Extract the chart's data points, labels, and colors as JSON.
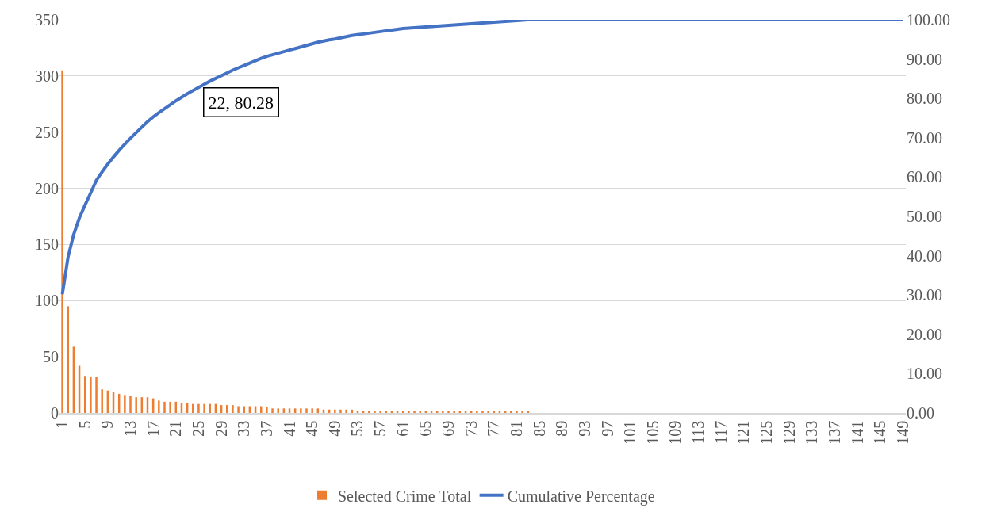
{
  "chart_data": {
    "type": "bar",
    "categories": [
      "1",
      null,
      null,
      null,
      "5",
      null,
      null,
      null,
      "9",
      null,
      null,
      null,
      "13",
      null,
      null,
      null,
      "17",
      null,
      null,
      null,
      "21",
      null,
      null,
      null,
      "25",
      null,
      null,
      null,
      "29",
      null,
      null,
      null,
      "33",
      null,
      null,
      null,
      "37",
      null,
      null,
      null,
      "41",
      null,
      null,
      null,
      "45",
      null,
      null,
      null,
      "49",
      null,
      null,
      null,
      "53",
      null,
      null,
      null,
      "57",
      null,
      null,
      null,
      "61",
      null,
      null,
      null,
      "65",
      null,
      null,
      null,
      "69",
      null,
      null,
      null,
      "73",
      null,
      null,
      null,
      "77",
      null,
      null,
      null,
      "81",
      null,
      null,
      null,
      "85",
      null,
      null,
      null,
      "89",
      null,
      null,
      null,
      "93",
      null,
      null,
      null,
      "97",
      null,
      null,
      null,
      "101",
      null,
      null,
      null,
      "105",
      null,
      null,
      null,
      "109",
      null,
      null,
      null,
      "113",
      null,
      null,
      null,
      "117",
      null,
      null,
      null,
      "121",
      null,
      null,
      null,
      "125",
      null,
      null,
      null,
      "129",
      null,
      null,
      null,
      "133",
      null,
      null,
      null,
      "137",
      null,
      null,
      null,
      "141",
      null,
      null,
      null,
      "145",
      null,
      null,
      null,
      "149"
    ],
    "series": [
      {
        "name": "Selected Crime Total",
        "color": "#ed7d31",
        "values": [
          305,
          95,
          59,
          42,
          33,
          32,
          32,
          21,
          20,
          19,
          17,
          16,
          15,
          14,
          14,
          14,
          13,
          11,
          10,
          10,
          10,
          9,
          9,
          8,
          8,
          8,
          8,
          8,
          7,
          7,
          7,
          6,
          6,
          6,
          6,
          6,
          5,
          4,
          4,
          4,
          4,
          4,
          4,
          4,
          4,
          4,
          3,
          3,
          3,
          3,
          3,
          3,
          2,
          2,
          2,
          2,
          2,
          2,
          2,
          2,
          2,
          1,
          1,
          1,
          1,
          1,
          1,
          1,
          1,
          1,
          1,
          1,
          1,
          1,
          1,
          1,
          1,
          1,
          1,
          1,
          1,
          1,
          1,
          0,
          0,
          0,
          0,
          0,
          0,
          0,
          0,
          0,
          0,
          0,
          0,
          0,
          0,
          0,
          0,
          0,
          0,
          0,
          0,
          0,
          0,
          0,
          0,
          0,
          0,
          0,
          0,
          0,
          0,
          0,
          0,
          0,
          0,
          0,
          0,
          0,
          0,
          0,
          0,
          0,
          0,
          0,
          0,
          0,
          0,
          0,
          0,
          0,
          0,
          0,
          0,
          0,
          0,
          0,
          0,
          0,
          0,
          0,
          0,
          0,
          0,
          0,
          0,
          0,
          0
        ]
      },
      {
        "name": "Cumulative Percentage",
        "type": "line",
        "axis": "y2",
        "color": "#4472c4",
        "values": [
          30.2,
          39.6,
          45.4,
          49.6,
          52.9,
          56.0,
          59.2,
          61.3,
          63.3,
          65.1,
          66.8,
          68.4,
          69.9,
          71.3,
          72.7,
          74.1,
          75.3,
          76.4,
          77.4,
          78.4,
          79.4,
          80.3,
          81.2,
          82.0,
          82.8,
          83.6,
          84.4,
          85.1,
          85.8,
          86.5,
          87.2,
          87.8,
          88.4,
          89.0,
          89.6,
          90.2,
          90.7,
          91.1,
          91.5,
          91.9,
          92.3,
          92.7,
          93.1,
          93.5,
          93.9,
          94.3,
          94.6,
          94.9,
          95.1,
          95.4,
          95.7,
          96.0,
          96.2,
          96.4,
          96.6,
          96.8,
          97.0,
          97.2,
          97.4,
          97.6,
          97.8,
          97.9,
          98.0,
          98.1,
          98.2,
          98.3,
          98.4,
          98.5,
          98.6,
          98.7,
          98.8,
          98.9,
          99.0,
          99.1,
          99.2,
          99.3,
          99.4,
          99.5,
          99.6,
          99.7,
          99.8,
          99.9,
          100,
          100,
          100,
          100,
          100,
          100,
          100,
          100,
          100,
          100,
          100,
          100,
          100,
          100,
          100,
          100,
          100,
          100,
          100,
          100,
          100,
          100,
          100,
          100,
          100,
          100,
          100,
          100,
          100,
          100,
          100,
          100,
          100,
          100,
          100,
          100,
          100,
          100,
          100,
          100,
          100,
          100,
          100,
          100,
          100,
          100,
          100,
          100,
          100,
          100,
          100,
          100,
          100,
          100,
          100,
          100,
          100,
          100,
          100,
          100,
          100,
          100,
          100,
          100,
          100,
          100,
          100
        ]
      }
    ],
    "ylim": [
      0,
      350
    ],
    "yticks": [
      0,
      50,
      100,
      150,
      200,
      250,
      300,
      350
    ],
    "y2lim": [
      0,
      100
    ],
    "y2ticks": [
      {
        "value": 0,
        "label": "0.00"
      },
      {
        "value": 10,
        "label": "10.00"
      },
      {
        "value": 20,
        "label": "20.00"
      },
      {
        "value": 30,
        "label": "30.00"
      },
      {
        "value": 40,
        "label": "40.00"
      },
      {
        "value": 50,
        "label": "50.00"
      },
      {
        "value": 60,
        "label": "60.00"
      },
      {
        "value": 70,
        "label": "70.00"
      },
      {
        "value": 80,
        "label": "80.00"
      },
      {
        "value": 90,
        "label": "90.00"
      },
      {
        "value": 100,
        "label": "100.00"
      }
    ],
    "annotations": [
      "22, 80.28"
    ],
    "grid": "y",
    "legend": "bottom",
    "marker": "none",
    "line_style": "solid"
  }
}
